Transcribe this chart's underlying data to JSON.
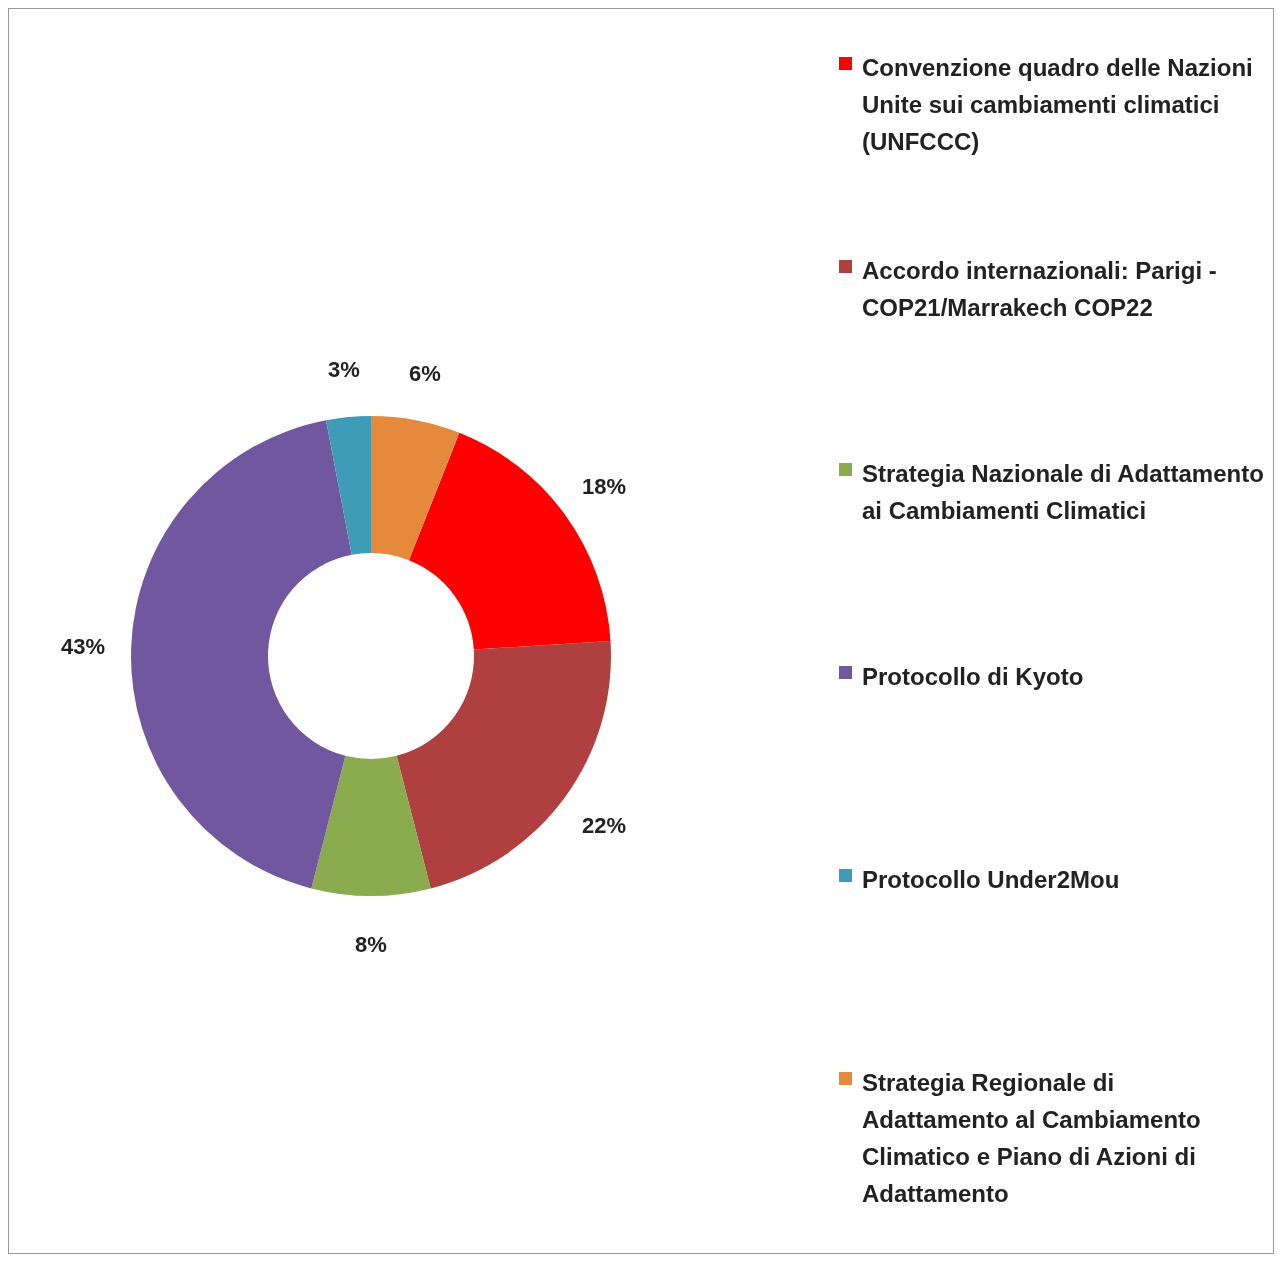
{
  "chart_data": {
    "type": "donut",
    "categories": [
      "Convenzione quadro delle Nazioni Unite sui cambiamenti climatici (UNFCCC)",
      "Accordo internazionali: Parigi - COP21/Marrakech COP22",
      "Strategia Nazionale di Adattamento ai Cambiamenti Climatici",
      "Protocollo di Kyoto",
      "Protocollo Under2Mou",
      "Strategia Regionale di Adattamento al Cambiamento Climatico e Piano di Azioni di Adattamento"
    ],
    "values": [
      18,
      22,
      8,
      43,
      3,
      6
    ],
    "value_labels": [
      "18%",
      "22%",
      "8%",
      "43%",
      "3%",
      "6%"
    ],
    "colors": [
      "#ff0000",
      "#b04040",
      "#8aab4e",
      "#7156a0",
      "#3f9cb8",
      "#e58a3c"
    ],
    "legend": "right"
  }
}
